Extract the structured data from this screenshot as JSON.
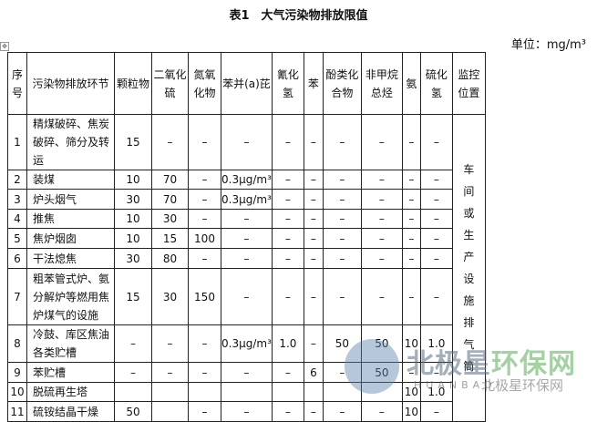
{
  "title": "表1　大气污染物排放限值",
  "unit": "单位：mg/m³",
  "headers": [
    "序号",
    "污染物排放环节",
    "颗粒物",
    "二氧化硫",
    "氮氧化物",
    "苯并(a)芘",
    "氰化氢",
    "苯",
    "酚类化合物",
    "非甲烷总烃",
    "氨",
    "硫化氢",
    "监控位置"
  ],
  "rows": [
    [
      "1",
      "精煤破碎、焦炭破碎、筛分及转运",
      "15",
      "–",
      "–",
      "–",
      "–",
      "–",
      "–",
      "–",
      "–",
      "–"
    ],
    [
      "2",
      "装煤",
      "10",
      "70",
      "–",
      "0.3μg/m³",
      "–",
      "–",
      "–",
      "–",
      "–",
      "–"
    ],
    [
      "3",
      "炉头烟气",
      "30",
      "70",
      "–",
      "0.3μg/m³",
      "–",
      "–",
      "–",
      "–",
      "–",
      "–"
    ],
    [
      "4",
      "推焦",
      "10",
      "30",
      "–",
      "–",
      "–",
      "–",
      "–",
      "–",
      "–",
      "–"
    ],
    [
      "5",
      "焦炉烟囱",
      "10",
      "15",
      "100",
      "–",
      "–",
      "–",
      "–",
      "–",
      "–",
      "–"
    ],
    [
      "6",
      "干法熄焦",
      "30",
      "80",
      "–",
      "–",
      "–",
      "–",
      "–",
      "–",
      "–",
      "–"
    ],
    [
      "7",
      "粗苯管式炉、氨分解炉等燃用焦炉煤气的设施",
      "15",
      "30",
      "150",
      "–",
      "–",
      "–",
      "–",
      "–",
      "–",
      "–"
    ],
    [
      "8",
      "冷鼓、库区焦油各类贮槽",
      "–",
      "–",
      "–",
      "0.3μg/m³",
      "1.0",
      "–",
      "50",
      "50",
      "10",
      "1.0"
    ],
    [
      "9",
      "苯贮槽",
      "–",
      "–",
      "–",
      "–",
      "–",
      "6",
      "–",
      "50",
      "–",
      "–"
    ],
    [
      "10",
      "脱硫再生塔",
      "",
      "",
      "",
      "",
      "",
      "",
      "",
      "",
      "10",
      "1.0"
    ],
    [
      "11",
      "硫铵结晶干燥",
      "50",
      "",
      "–",
      "–",
      "–",
      "–",
      "–",
      "–",
      "10",
      "–"
    ]
  ],
  "monitor_location": "车间或生产设施排气筒",
  "watermark": {
    "cn_a": "北极星",
    "cn_b": "环保网",
    "en": "HUANBAO",
    "wechat": "北极星环保网"
  }
}
